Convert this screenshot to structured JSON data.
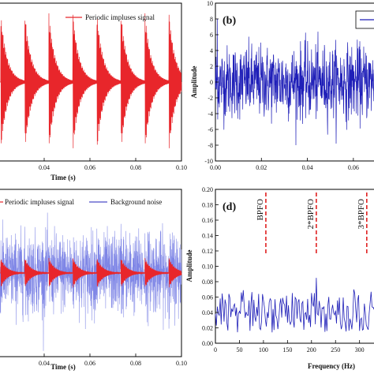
{
  "colors": {
    "impulse": "#e8262b",
    "noise": "#1f1fb8",
    "noise_light": "#7f86e6",
    "marker": "#e02020",
    "axis": "#000000"
  },
  "chart_data": [
    {
      "id": "a",
      "type": "line",
      "panel_label": "",
      "xlabel": "Time (s)",
      "ylabel": "",
      "xlim": [
        0.02,
        0.1
      ],
      "ylim": [
        -1,
        1
      ],
      "xticks": [
        "0.04",
        "0.06",
        "0.08",
        "0.10"
      ],
      "yticks": [],
      "legend": {
        "position": "top-right",
        "entries": [
          "Periodic impluses signal"
        ]
      },
      "series": [
        {
          "name": "Periodic impluses signal",
          "style": "decaying_impulses",
          "impulse_times_s": [
            0.021,
            0.0315,
            0.042,
            0.0525,
            0.063,
            0.0735,
            0.084,
            0.0945
          ],
          "amplitude": 1.0,
          "decay_time_s": 0.0028,
          "carrier_hz": 4000
        }
      ]
    },
    {
      "id": "b",
      "type": "line",
      "panel_label": "(b)",
      "xlabel": "",
      "ylabel": "Amplitude",
      "xlim": [
        0.0,
        0.07
      ],
      "ylim": [
        -10,
        10
      ],
      "xticks": [
        "0.00",
        "0.02",
        "0.04",
        "0.06"
      ],
      "yticks": [
        "-10",
        "-8",
        "-6",
        "-4",
        "-2",
        "0",
        "2",
        "4",
        "6",
        "8",
        "10"
      ],
      "legend": {
        "position": "top-right",
        "entries": [
          ""
        ]
      },
      "series": [
        {
          "name": "",
          "style": "noise",
          "std": 2.3,
          "peak": 8
        }
      ]
    },
    {
      "id": "c",
      "type": "line",
      "panel_label": "",
      "xlabel": "Time (s)",
      "ylabel": "",
      "xlim": [
        0.02,
        0.1
      ],
      "ylim": [
        -10,
        10
      ],
      "xticks": [
        "0.04",
        "0.06",
        "0.08",
        "0.10"
      ],
      "yticks": [],
      "legend": {
        "position": "top",
        "entries": [
          "Periodic impluses signal",
          "Background noise"
        ]
      },
      "series": [
        {
          "name": "Background noise",
          "style": "noise",
          "std": 2.3
        },
        {
          "name": "Periodic impluses signal",
          "style": "decaying_impulses",
          "impulse_times_s": [
            0.021,
            0.0315,
            0.042,
            0.0525,
            0.063,
            0.0735,
            0.084,
            0.0945
          ],
          "amplitude": 1.8,
          "decay_time_s": 0.0028,
          "carrier_hz": 4000
        }
      ]
    },
    {
      "id": "d",
      "type": "line",
      "panel_label": "(d)",
      "xlabel": "Frequency (Hz)",
      "ylabel": "Amplitude",
      "xlim": [
        0,
        335
      ],
      "ylim": [
        0.0,
        0.2
      ],
      "xticks": [
        "0",
        "50",
        "100",
        "150",
        "200",
        "250",
        "300"
      ],
      "yticks": [
        "0.00",
        "0.02",
        "0.04",
        "0.06",
        "0.08",
        "0.10",
        "0.12",
        "0.14",
        "0.16",
        "0.18",
        "0.20"
      ],
      "annotations": [
        {
          "label": "BPFO",
          "x": 105
        },
        {
          "label": "2*BPFO",
          "x": 210
        },
        {
          "label": "3*BPFO",
          "x": 315
        }
      ],
      "peaks": [
        {
          "x": 105,
          "y": 0.12
        },
        {
          "x": 210,
          "y": 0.085
        },
        {
          "x": 315,
          "y": 0.11
        }
      ],
      "series": [
        {
          "name": "",
          "style": "spectrum",
          "baseline": 0.035,
          "spread": 0.03
        }
      ]
    }
  ]
}
